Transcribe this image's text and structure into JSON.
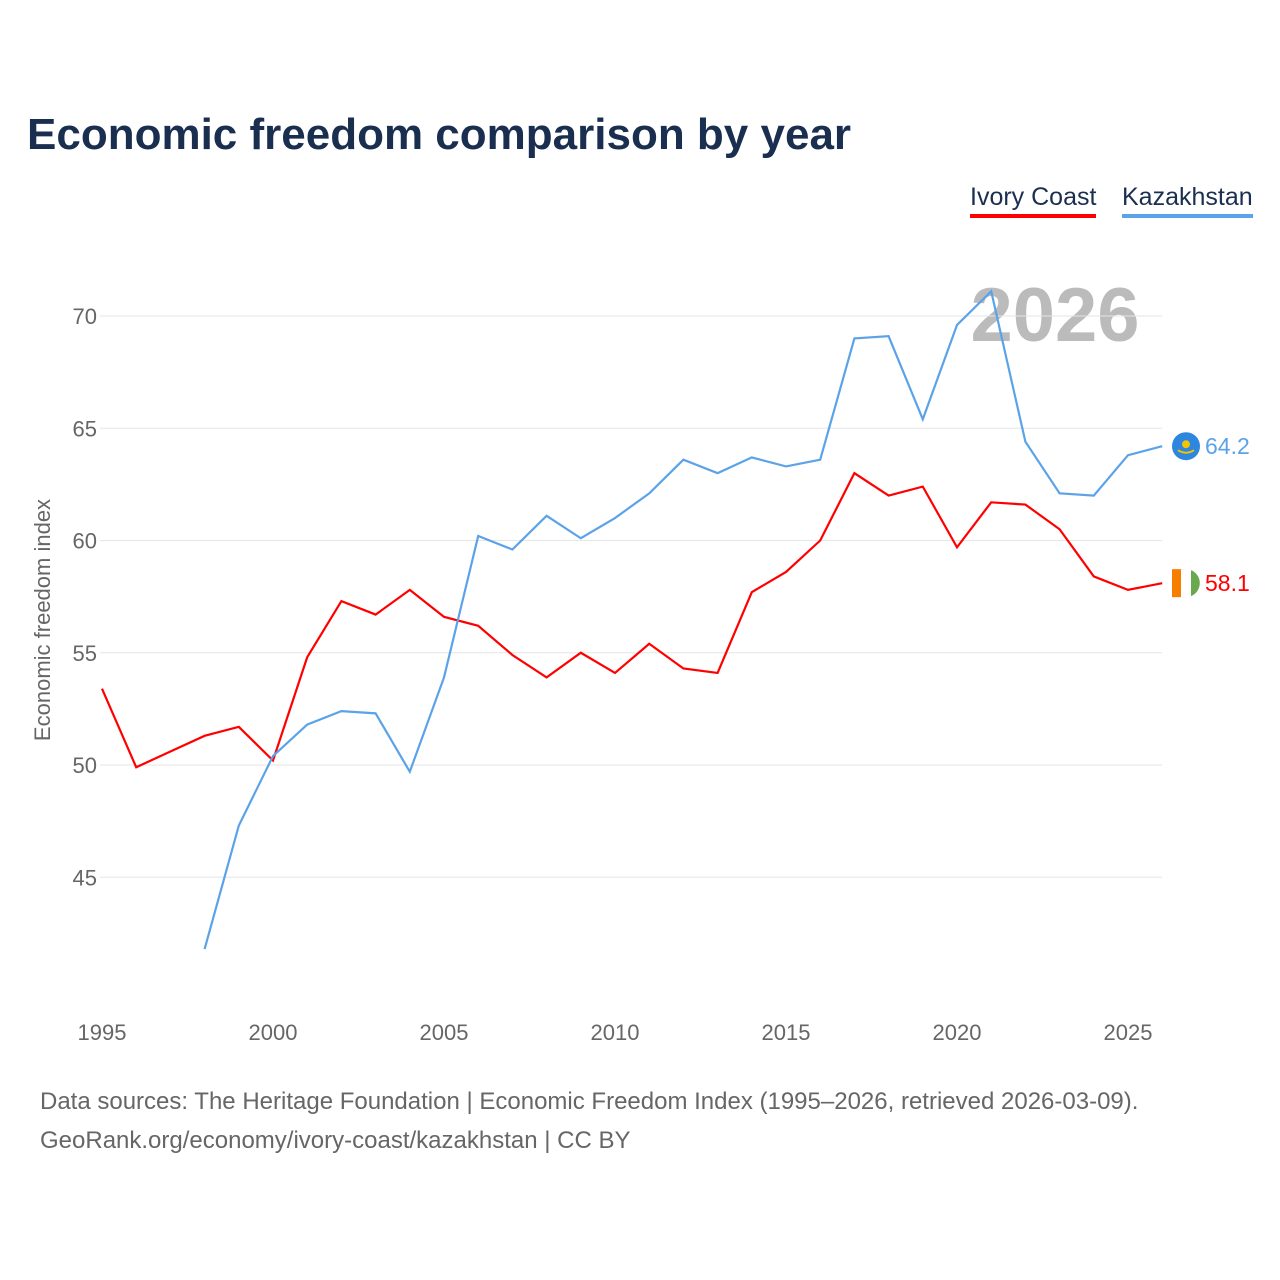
{
  "title": "Economic freedom comparison by year",
  "legend": [
    "Ivory Coast",
    "Kazakhstan"
  ],
  "year_label": "2026",
  "sources": [
    "Data sources: The Heritage Foundation | Economic Freedom Index (1995–2026, retrieved 2026-03-09).",
    "GeoRank.org/economy/ivory-coast/kazakhstan | CC BY"
  ],
  "chart_data": {
    "type": "line",
    "title": "Economic freedom comparison by year",
    "xlabel": "",
    "ylabel": "Economic freedom index",
    "xlim": [
      1995,
      2026
    ],
    "ylim": [
      40,
      72
    ],
    "xticks": [
      1995,
      2000,
      2005,
      2010,
      2015,
      2020,
      2025
    ],
    "yticks": [
      45,
      50,
      55,
      60,
      65,
      70
    ],
    "grid": true,
    "legend_position": "top-right",
    "series": [
      {
        "name": "Ivory Coast",
        "color": "#ff0000",
        "end_label": "58.1",
        "start": 1995,
        "values": [
          53.4,
          49.9,
          50.6,
          51.3,
          51.7,
          50.2,
          54.8,
          57.3,
          56.7,
          57.8,
          56.6,
          56.2,
          54.9,
          53.9,
          55.0,
          54.1,
          55.4,
          54.3,
          54.1,
          57.7,
          58.6,
          60.0,
          63.0,
          62.0,
          62.4,
          59.7,
          61.7,
          61.6,
          60.5,
          58.4,
          57.8,
          58.1
        ]
      },
      {
        "name": "Kazakhstan",
        "color": "#5ba3e8",
        "end_label": "64.2",
        "start": 1998,
        "values": [
          41.8,
          47.3,
          50.4,
          51.8,
          52.4,
          52.3,
          49.7,
          53.9,
          60.2,
          59.6,
          61.1,
          60.1,
          61.0,
          62.1,
          63.6,
          63.0,
          63.7,
          63.3,
          63.6,
          69.0,
          69.1,
          65.4,
          69.6,
          71.1,
          64.4,
          62.1,
          62.0,
          63.8,
          64.2
        ]
      }
    ]
  }
}
